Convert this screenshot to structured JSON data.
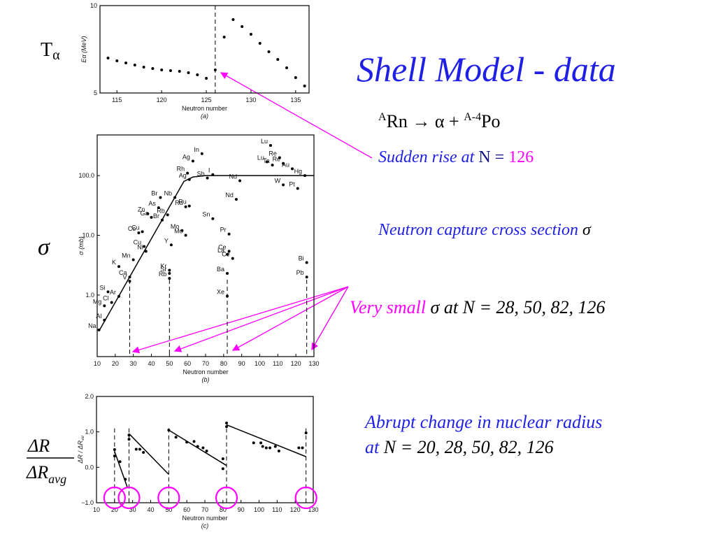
{
  "slide": {
    "title": "Shell Model - data",
    "reaction": {
      "mass": "A",
      "parent": "Rn → α + ",
      "mass2": "A-4",
      "daughter": "Po"
    },
    "sudden": {
      "text": "Sudden rise at ",
      "n": "N = ",
      "value": "126"
    },
    "capture": {
      "text": "Neutron capture cross section ",
      "symbol": "σ"
    },
    "small": {
      "text": "Very small ",
      "symbol": "σ",
      "rest": " at N = 28, 50, 82, 126"
    },
    "abrupt": {
      "line1": "Abrupt change in nuclear radius",
      "at": "at ",
      "rest": "N = 20, 28, 50, 82, 126"
    },
    "t_label": {
      "main": "T",
      "sub": "α"
    },
    "sigma_label": "σ",
    "radius_label": {
      "num": "ΔR",
      "den": "ΔR",
      "den_sub": "avg"
    }
  },
  "chart_data": [
    {
      "type": "scatter",
      "xlabel": "Neutron number",
      "ylabel": "Eα (MeV)",
      "caption": "(a)",
      "x": [
        114,
        115,
        116,
        117,
        118,
        119,
        120,
        121,
        122,
        123,
        124,
        125,
        126,
        127,
        128,
        129,
        130,
        131,
        132,
        133,
        134,
        135,
        136
      ],
      "values": [
        7.0,
        6.84,
        6.72,
        6.6,
        6.48,
        6.4,
        6.32,
        6.28,
        6.24,
        6.16,
        6.04,
        5.84,
        6.32,
        8.2,
        9.2,
        8.8,
        8.36,
        7.84,
        7.36,
        6.92,
        6.44,
        5.88,
        5.4
      ],
      "xlim": [
        113.1,
        136.5
      ],
      "ylim": [
        5,
        10
      ],
      "xticks": [
        115,
        120,
        125,
        130,
        135
      ],
      "yticks": [
        5,
        10
      ],
      "reference_lines": [
        126
      ]
    },
    {
      "type": "scatter",
      "xlabel": "Neutron number",
      "ylabel": "σ (mb)",
      "caption": "(b)",
      "log": true,
      "point_labels": [
        "Na",
        "Al",
        "Mg",
        "Cl",
        "Si",
        "Ar",
        "K",
        "Ca",
        "V",
        "Mn",
        "Co",
        "Cu",
        "Cu",
        "Ni",
        "Ga",
        "Zn",
        "As",
        "Br",
        "Br",
        "Rb",
        "Nb",
        "Ru",
        "Ru",
        "Mo",
        "Mo",
        "Y",
        "Kr",
        "Sr",
        "Rb",
        "Rh",
        "Ag",
        "In",
        "Ag",
        "Sb",
        "I",
        "Sn",
        "Nd",
        "Nd",
        "Pr",
        "Ce",
        "La",
        "Ce",
        "Ba",
        "Xe",
        "Lu",
        "Lu",
        "Re",
        "Re",
        "Ta",
        "Au",
        "W",
        "Hg",
        "Pt",
        "Bi",
        "Pb"
      ],
      "x": [
        11,
        14,
        14,
        18,
        16,
        22,
        22,
        28,
        28,
        30,
        33,
        35,
        36,
        37,
        40,
        38,
        44,
        45,
        46,
        49,
        53,
        59,
        61,
        57,
        59,
        51,
        50,
        50,
        50,
        60,
        63,
        68,
        61,
        71,
        74,
        74,
        89,
        87,
        83,
        83,
        82,
        85,
        82,
        82,
        106,
        104,
        111,
        113,
        107,
        118,
        113,
        125,
        121,
        126,
        126
      ],
      "values": [
        0.26,
        0.38,
        0.66,
        0.75,
        1.13,
        0.95,
        3.0,
        2.0,
        1.7,
        3.9,
        11,
        11.5,
        6.5,
        5.4,
        20,
        23,
        29,
        43,
        18,
        22,
        43,
        30,
        31,
        12,
        10,
        6.9,
        2.6,
        2.3,
        1.9,
        110,
        175,
        233,
        86,
        91,
        104,
        19,
        82,
        40,
        10.5,
        5.4,
        4.8,
        4.1,
        2.3,
        0.96,
        320,
        170,
        200,
        160,
        150,
        130,
        70,
        100,
        61,
        3.5,
        2.0
      ],
      "lines": [
        {
          "x": [
            11,
            58,
            63,
            70,
            80,
            130
          ],
          "values": [
            0.25,
            80,
            95,
            100,
            100,
            100
          ]
        }
      ],
      "xlim": [
        10,
        130
      ],
      "ylim": [
        0.093,
        480
      ],
      "xticks": [
        10,
        20,
        30,
        40,
        50,
        60,
        70,
        80,
        90,
        100,
        110,
        120,
        130
      ],
      "yticks": [
        {
          "value": 1,
          "label": "1.0"
        },
        {
          "value": 10,
          "label": "10.0"
        },
        {
          "value": 100,
          "label": "100.0"
        }
      ],
      "reference_lines": [
        28,
        50,
        82,
        126
      ]
    },
    {
      "type": "scatter",
      "xlabel": "Neutron number",
      "ylabel": "ΔR / ΔR",
      "ylabel_sub": "std",
      "caption": "(c)",
      "x": [
        20,
        20,
        23,
        26,
        28,
        28,
        32,
        34,
        36,
        50,
        54,
        60,
        64,
        66,
        69,
        71,
        80,
        80,
        82,
        82,
        97,
        101,
        102,
        104,
        106,
        109,
        111,
        122,
        124,
        126
      ],
      "values": [
        0.5,
        0.32,
        0.16,
        -0.34,
        0.91,
        0.79,
        0.51,
        0.51,
        0.42,
        1.05,
        0.85,
        0.71,
        0.73,
        0.59,
        0.55,
        0.46,
        0.24,
        -0.04,
        1.25,
        1.15,
        0.69,
        0.69,
        0.59,
        0.55,
        0.55,
        0.59,
        0.46,
        0.55,
        0.55,
        0.97
      ],
      "lines": [
        {
          "x": [
            20,
            27
          ],
          "values": [
            0.45,
            -0.55
          ]
        },
        {
          "x": [
            28,
            50
          ],
          "values": [
            0.95,
            -0.2
          ]
        },
        {
          "x": [
            50,
            82
          ],
          "values": [
            1.05,
            0.05
          ]
        },
        {
          "x": [
            82,
            126
          ],
          "values": [
            1.2,
            0.3
          ]
        }
      ],
      "xlim": [
        10,
        130
      ],
      "ylim": [
        -1,
        2
      ],
      "xticks": [
        10,
        20,
        30,
        40,
        50,
        60,
        70,
        80,
        90,
        100,
        110,
        120,
        130
      ],
      "yticks": [
        {
          "value": -1,
          "label": "−1.0"
        },
        {
          "value": 0,
          "label": "0.0"
        },
        {
          "value": 1,
          "label": "1.0"
        },
        {
          "value": 2,
          "label": "2.0"
        }
      ],
      "reference_lines": [
        20,
        28,
        50,
        82,
        126
      ]
    }
  ]
}
